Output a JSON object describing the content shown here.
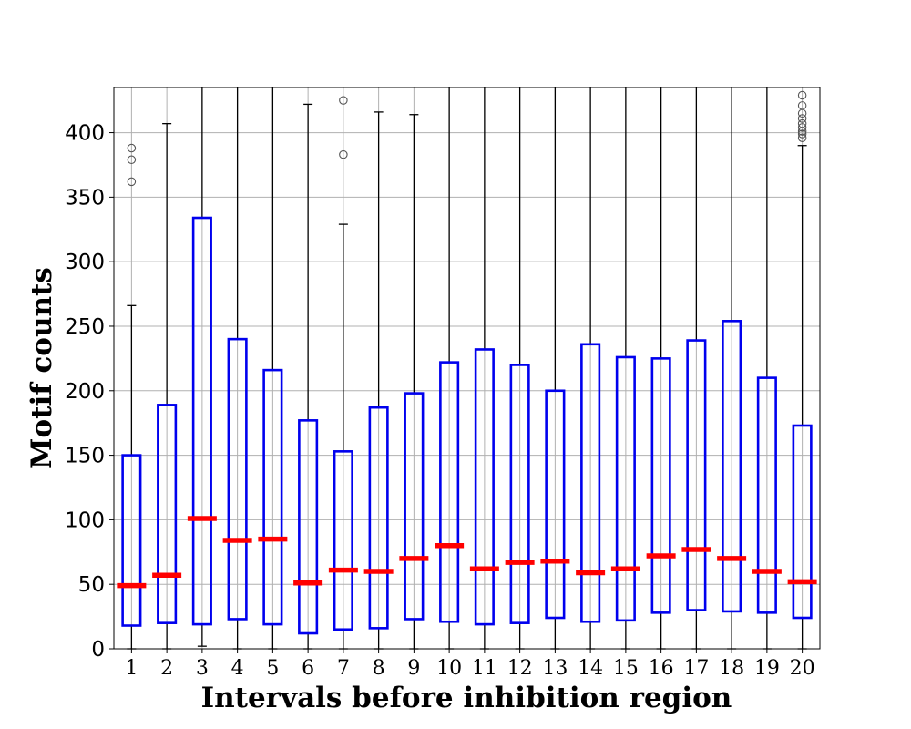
{
  "chart_data": {
    "type": "boxplot",
    "xlabel": "Intervals before inhibition region",
    "ylabel": "Motif counts",
    "ylim": [
      0,
      435
    ],
    "yticks": [
      0,
      50,
      100,
      150,
      200,
      250,
      300,
      350,
      400
    ],
    "grid": true,
    "colors": {
      "box": "#0000ee",
      "median": "#ff0000",
      "whisker": "#000000",
      "grid": "#b0b0b0",
      "outlier": "#555555"
    },
    "categories": [
      "1",
      "2",
      "3",
      "4",
      "5",
      "6",
      "7",
      "8",
      "9",
      "10",
      "11",
      "12",
      "13",
      "14",
      "15",
      "16",
      "17",
      "18",
      "19",
      "20"
    ],
    "boxes": [
      {
        "label": "1",
        "whislo": 0,
        "q1": 18,
        "median": 49,
        "q3": 150,
        "whishi": 266,
        "fliers": [
          362,
          379,
          388
        ]
      },
      {
        "label": "2",
        "whislo": 0,
        "q1": 20,
        "median": 57,
        "q3": 189,
        "whishi": 407,
        "fliers": []
      },
      {
        "label": "3",
        "whislo": 2,
        "q1": 19,
        "median": 101,
        "q3": 334,
        "whishi": 435,
        "fliers": []
      },
      {
        "label": "4",
        "whislo": 0,
        "q1": 23,
        "median": 84,
        "q3": 240,
        "whishi": 435,
        "fliers": []
      },
      {
        "label": "5",
        "whislo": 0,
        "q1": 19,
        "median": 85,
        "q3": 216,
        "whishi": 435,
        "fliers": []
      },
      {
        "label": "6",
        "whislo": 0,
        "q1": 12,
        "median": 51,
        "q3": 177,
        "whishi": 422,
        "fliers": []
      },
      {
        "label": "7",
        "whislo": 0,
        "q1": 15,
        "median": 61,
        "q3": 153,
        "whishi": 329,
        "fliers": [
          383,
          425
        ]
      },
      {
        "label": "8",
        "whislo": 0,
        "q1": 16,
        "median": 60,
        "q3": 187,
        "whishi": 416,
        "fliers": []
      },
      {
        "label": "9",
        "whislo": 0,
        "q1": 23,
        "median": 70,
        "q3": 198,
        "whishi": 414,
        "fliers": []
      },
      {
        "label": "10",
        "whislo": 0,
        "q1": 21,
        "median": 80,
        "q3": 222,
        "whishi": 435,
        "fliers": []
      },
      {
        "label": "11",
        "whislo": 0,
        "q1": 19,
        "median": 62,
        "q3": 232,
        "whishi": 435,
        "fliers": []
      },
      {
        "label": "12",
        "whislo": 0,
        "q1": 20,
        "median": 67,
        "q3": 220,
        "whishi": 435,
        "fliers": []
      },
      {
        "label": "13",
        "whislo": 0,
        "q1": 24,
        "median": 68,
        "q3": 200,
        "whishi": 435,
        "fliers": []
      },
      {
        "label": "14",
        "whislo": 0,
        "q1": 21,
        "median": 59,
        "q3": 236,
        "whishi": 435,
        "fliers": []
      },
      {
        "label": "15",
        "whislo": 0,
        "q1": 22,
        "median": 62,
        "q3": 226,
        "whishi": 435,
        "fliers": []
      },
      {
        "label": "16",
        "whislo": 0,
        "q1": 28,
        "median": 72,
        "q3": 225,
        "whishi": 435,
        "fliers": []
      },
      {
        "label": "17",
        "whislo": 0,
        "q1": 30,
        "median": 77,
        "q3": 239,
        "whishi": 435,
        "fliers": []
      },
      {
        "label": "18",
        "whislo": 0,
        "q1": 29,
        "median": 70,
        "q3": 254,
        "whishi": 435,
        "fliers": []
      },
      {
        "label": "19",
        "whislo": 0,
        "q1": 28,
        "median": 60,
        "q3": 210,
        "whishi": 435,
        "fliers": []
      },
      {
        "label": "20",
        "whislo": 0,
        "q1": 24,
        "median": 52,
        "q3": 173,
        "whishi": 390,
        "fliers": [
          396,
          399,
          401,
          404,
          407,
          411,
          415,
          421,
          429
        ]
      }
    ]
  }
}
